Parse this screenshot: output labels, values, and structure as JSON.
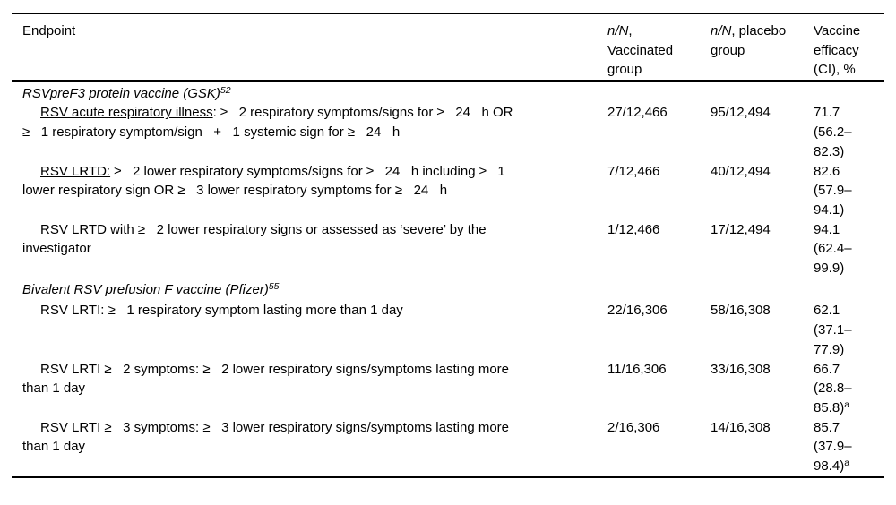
{
  "table": {
    "header": {
      "col1": "Endpoint",
      "col2_italic": "n/N",
      "col2_rest": ",\nVaccinated\ngroup",
      "col3_italic": "n/N",
      "col3_rest": ", placebo\ngroup",
      "col4": "Vaccine\nefficacy\n(CI), %"
    },
    "sections": [
      {
        "title": "RSVpreF3 protein vaccine (GSK)",
        "ref": "52",
        "rows": [
          {
            "endpoint_underline": "RSV acute respiratory illness",
            "endpoint_rest": ": ≥   2 respiratory symptoms/signs for ≥   24   h OR\n≥   1 respiratory symptom/sign   +   1 systemic sign for ≥   24   h",
            "vaccinated": "27/12,466",
            "placebo": "95/12,494",
            "efficacy": "71.7\n(56.2–\n82.3)",
            "efficacy_sup": ""
          },
          {
            "endpoint_underline": "RSV LRTD:",
            "endpoint_rest": " ≥   2 lower respiratory symptoms/signs for ≥   24   h including ≥   1\nlower respiratory sign OR ≥   3 lower respiratory symptoms for ≥   24   h",
            "vaccinated": "7/12,466",
            "placebo": "40/12,494",
            "efficacy": "82.6\n(57.9–\n94.1)",
            "efficacy_sup": ""
          },
          {
            "endpoint_underline": "",
            "endpoint_rest": "RSV LRTD with ≥   2 lower respiratory signs or assessed as ‘severe’ by the\ninvestigator",
            "vaccinated": "1/12,466",
            "placebo": "17/12,494",
            "efficacy": "94.1\n(62.4–\n99.9)",
            "efficacy_sup": ""
          }
        ]
      },
      {
        "title": "Bivalent RSV prefusion F vaccine (Pfizer)",
        "ref": "55",
        "rows": [
          {
            "endpoint_underline": "",
            "endpoint_rest": "RSV LRTI: ≥   1 respiratory symptom lasting more than 1 day",
            "vaccinated": "22/16,306",
            "placebo": "58/16,308",
            "efficacy": "62.1\n(37.1–\n77.9)",
            "efficacy_sup": ""
          },
          {
            "endpoint_underline": "",
            "endpoint_rest": "RSV LRTI ≥   2 symptoms: ≥   2 lower respiratory signs/symptoms lasting more\nthan 1 day",
            "vaccinated": "11/16,306",
            "placebo": "33/16,308",
            "efficacy": "66.7\n(28.8–\n85.8)",
            "efficacy_sup": "a"
          },
          {
            "endpoint_underline": "",
            "endpoint_rest": "RSV LRTI ≥   3 symptoms: ≥   3 lower respiratory signs/symptoms lasting more\nthan 1 day",
            "vaccinated": "2/16,306",
            "placebo": "14/16,308",
            "efficacy": "85.7\n(37.9–\n98.4)",
            "efficacy_sup": "a"
          }
        ]
      }
    ]
  }
}
